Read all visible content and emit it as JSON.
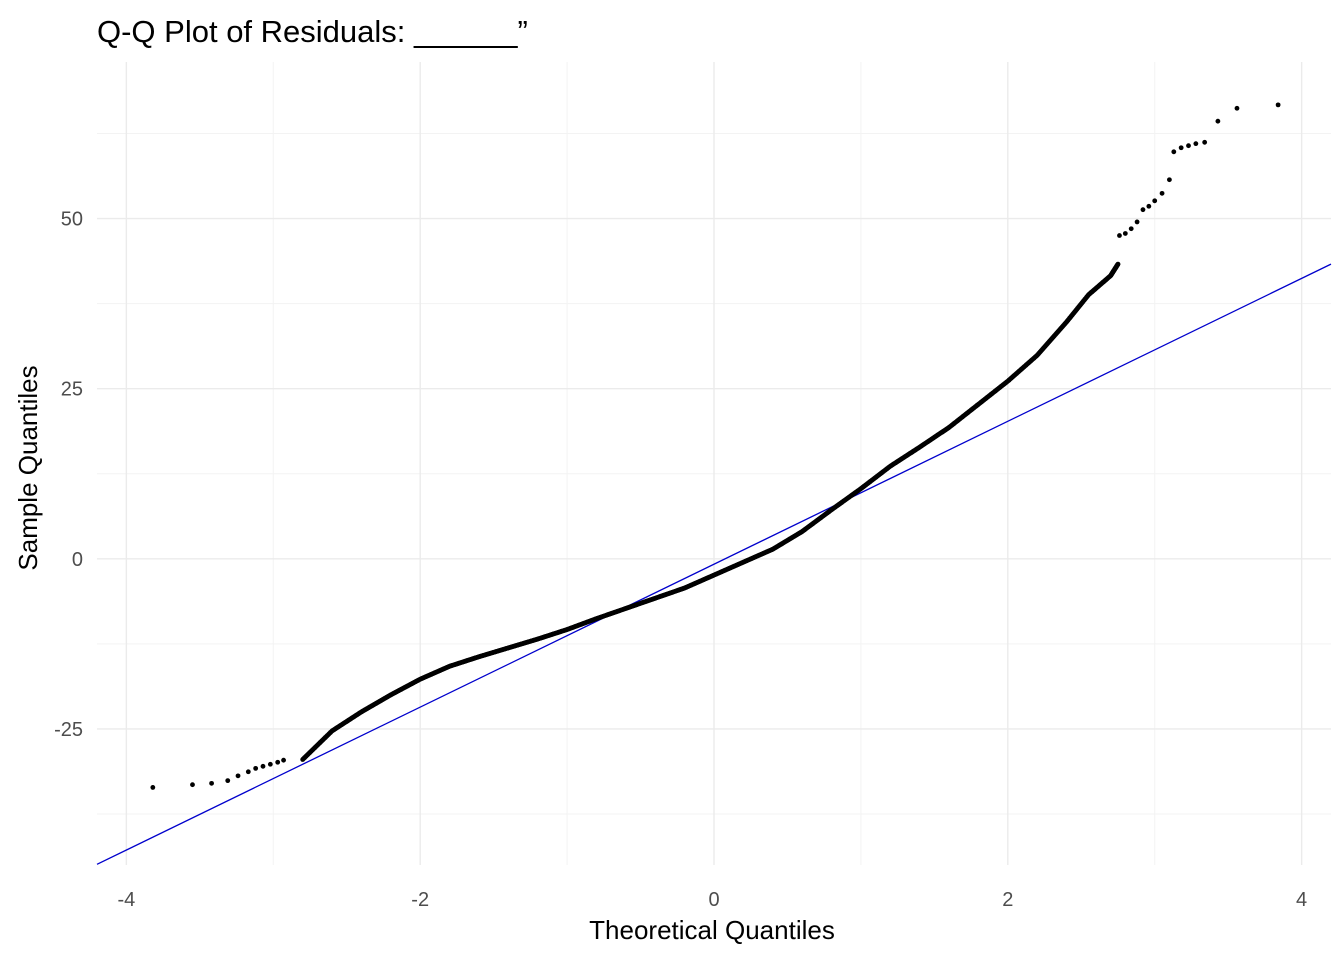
{
  "chart_data": {
    "type": "scatter",
    "title": "Q-Q Plot of Residuals: ______”",
    "xlabel": "Theoretical Quantiles",
    "ylabel": "Sample Quantiles",
    "xlim": [
      -4.2,
      4.2
    ],
    "ylim": [
      -45,
      73
    ],
    "x_ticks": [
      -4,
      -2,
      0,
      2,
      4
    ],
    "x_tick_labels": [
      "-4",
      "-2",
      "0",
      "2",
      "4"
    ],
    "y_ticks": [
      -25,
      0,
      25,
      50
    ],
    "y_tick_labels": [
      "-25",
      "0",
      "25",
      "50"
    ],
    "grid": true,
    "point_color": "#000000",
    "line_color": "#0000cc",
    "reference_line": {
      "intercept": -0.8,
      "slope": 10.5
    },
    "curve_points": [
      {
        "x": -2.8,
        "y": -29.5
      },
      {
        "x": -2.6,
        "y": -25.3
      },
      {
        "x": -2.4,
        "y": -22.5
      },
      {
        "x": -2.2,
        "y": -20.0
      },
      {
        "x": -2.0,
        "y": -17.7
      },
      {
        "x": -1.8,
        "y": -15.8
      },
      {
        "x": -1.6,
        "y": -14.4
      },
      {
        "x": -1.4,
        "y": -13.1
      },
      {
        "x": -1.2,
        "y": -11.8
      },
      {
        "x": -1.0,
        "y": -10.4
      },
      {
        "x": -0.8,
        "y": -8.8
      },
      {
        "x": -0.6,
        "y": -7.3
      },
      {
        "x": -0.4,
        "y": -5.8
      },
      {
        "x": -0.2,
        "y": -4.3
      },
      {
        "x": 0.0,
        "y": -2.4
      },
      {
        "x": 0.2,
        "y": -0.5
      },
      {
        "x": 0.4,
        "y": 1.4
      },
      {
        "x": 0.6,
        "y": 4.0
      },
      {
        "x": 0.8,
        "y": 7.2
      },
      {
        "x": 1.0,
        "y": 10.3
      },
      {
        "x": 1.2,
        "y": 13.6
      },
      {
        "x": 1.4,
        "y": 16.4
      },
      {
        "x": 1.6,
        "y": 19.3
      },
      {
        "x": 1.8,
        "y": 22.7
      },
      {
        "x": 2.0,
        "y": 26.1
      },
      {
        "x": 2.2,
        "y": 29.9
      },
      {
        "x": 2.4,
        "y": 34.8
      },
      {
        "x": 2.55,
        "y": 38.8
      },
      {
        "x": 2.7,
        "y": 41.6
      },
      {
        "x": 2.75,
        "y": 43.3
      }
    ],
    "tail_points": [
      {
        "x": -3.82,
        "y": -33.6
      },
      {
        "x": -3.55,
        "y": -33.2
      },
      {
        "x": -3.42,
        "y": -33.0
      },
      {
        "x": -3.31,
        "y": -32.6
      },
      {
        "x": -3.24,
        "y": -31.9
      },
      {
        "x": -3.17,
        "y": -31.3
      },
      {
        "x": -3.12,
        "y": -30.8
      },
      {
        "x": -3.07,
        "y": -30.5
      },
      {
        "x": -3.02,
        "y": -30.2
      },
      {
        "x": -2.97,
        "y": -29.9
      },
      {
        "x": -2.93,
        "y": -29.6
      },
      {
        "x": 2.76,
        "y": 47.5
      },
      {
        "x": 2.8,
        "y": 47.8
      },
      {
        "x": 2.84,
        "y": 48.5
      },
      {
        "x": 2.88,
        "y": 49.5
      },
      {
        "x": 2.92,
        "y": 51.3
      },
      {
        "x": 2.96,
        "y": 51.8
      },
      {
        "x": 3.0,
        "y": 52.6
      },
      {
        "x": 3.05,
        "y": 53.7
      },
      {
        "x": 3.1,
        "y": 55.7
      },
      {
        "x": 3.13,
        "y": 59.8
      },
      {
        "x": 3.18,
        "y": 60.4
      },
      {
        "x": 3.23,
        "y": 60.7
      },
      {
        "x": 3.28,
        "y": 61.0
      },
      {
        "x": 3.34,
        "y": 61.2
      },
      {
        "x": 3.43,
        "y": 64.3
      },
      {
        "x": 3.56,
        "y": 66.2
      },
      {
        "x": 3.84,
        "y": 66.7
      }
    ]
  }
}
